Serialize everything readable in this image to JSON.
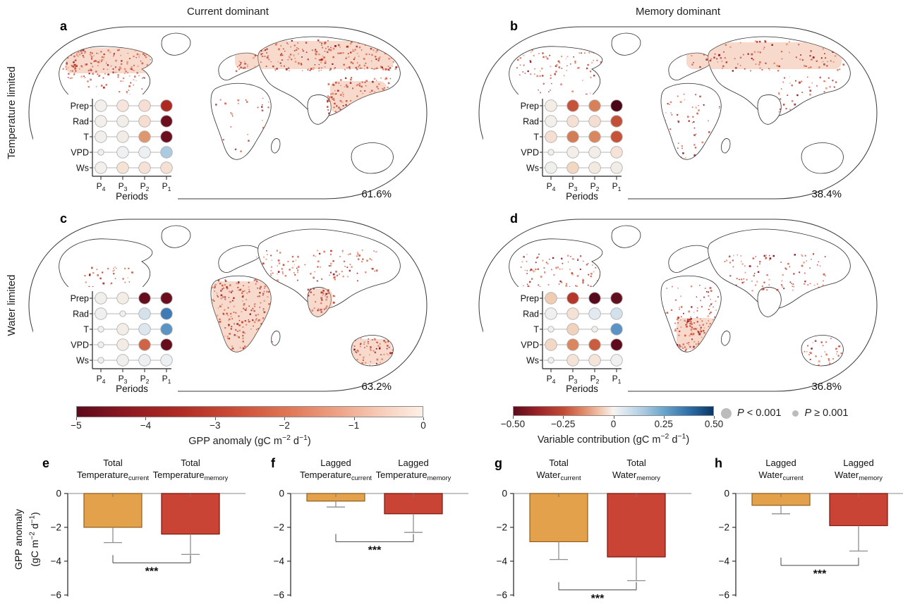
{
  "figure": {
    "column_titles": [
      "Current dominant",
      "Memory dominant"
    ],
    "row_titles": [
      "Temperature limited",
      "Water limited"
    ]
  },
  "inset": {
    "row_labels": [
      "Prep",
      "Rad",
      "T",
      "VPD",
      "Ws"
    ],
    "col_labels": [
      "P_{4}",
      "P_{3}",
      "P_{2}",
      "P_{1}"
    ],
    "xlabel": "Periods"
  },
  "maps": [
    {
      "letter": "a",
      "row": "Temperature limited",
      "column": "Current dominant",
      "percent": "61.6%",
      "matrix": [
        [
          "#f2efec",
          "#f7e4da",
          "#f6ded2",
          "#ad2a23"
        ],
        [
          "#f2efec",
          "#f1eee9",
          "#f6ddd0",
          "#6d0e1f"
        ],
        [
          "#f1efec",
          "#f1ece6",
          "#e0976f",
          "#6d0e1f"
        ],
        [
          "#f0efee",
          "#eef0f1",
          "#ecf0f3",
          "#accbe1"
        ],
        [
          "#f2efec",
          "#f7e2d6",
          "#f7e0d4",
          "#f6dfd3"
        ]
      ],
      "small_dots": [
        [
          3,
          0
        ]
      ]
    },
    {
      "letter": "b",
      "row": "Temperature limited",
      "column": "Memory dominant",
      "percent": "38.4%",
      "matrix": [
        [
          "#f4ede6",
          "#c6523a",
          "#d8805a",
          "#4c0517"
        ],
        [
          "#f2efec",
          "#f6e0d3",
          "#f5ded1",
          "#c24f37"
        ],
        [
          "#f6ded1",
          "#d47c54",
          "#da8760",
          "#c65338"
        ],
        [
          "#f1efec",
          "#f3eee9",
          "#f2ede8",
          "#f6e2d6"
        ],
        [
          "#f1efeb",
          "#f2d7c3",
          "#f3eadf",
          "#f2ece6"
        ]
      ],
      "small_dots": [
        [
          3,
          0
        ]
      ]
    },
    {
      "letter": "c",
      "row": "Water limited",
      "column": "Current dominant",
      "percent": "63.2%",
      "matrix": [
        [
          "#f1efec",
          "#f3ede6",
          "#650c1d",
          "#6d0e1f"
        ],
        [
          "#f0f0ef",
          "#f0efed",
          "#d3e1ea",
          "#3f7cb5"
        ],
        [
          "#f0f0ef",
          "#f2ede7",
          "#dbe6ee",
          "#5b94c4"
        ],
        [
          "#f0efed",
          "#f3ece4",
          "#cf6446",
          "#650c1d"
        ],
        [
          "#efefee",
          "#f1efed",
          "#edf0f2",
          "#edf0f2"
        ]
      ],
      "small_dots": [
        [
          1,
          1
        ],
        [
          2,
          0
        ],
        [
          3,
          0
        ],
        [
          4,
          0
        ]
      ]
    },
    {
      "letter": "d",
      "row": "Water limited",
      "column": "Memory dominant",
      "percent": "36.8%",
      "matrix": [
        [
          "#efccb2",
          "#b63629",
          "#570a1b",
          "#62101d"
        ],
        [
          "#eef0f1",
          "#f6e1d5",
          "#e2e9f0",
          "#d3e1ec"
        ],
        [
          "#f0efed",
          "#f1d3bd",
          "#f1eeea",
          "#5b94c4"
        ],
        [
          "#f3d8c6",
          "#da8760",
          "#ca5c3f",
          "#600b1c"
        ],
        [
          "#efefee",
          "#f6e3d8",
          "#f5e4da",
          "#eff0f0"
        ]
      ],
      "small_dots": [
        [
          2,
          0
        ],
        [
          2,
          2
        ],
        [
          4,
          0
        ]
      ]
    }
  ],
  "colorbars": {
    "gpp": {
      "label": "GPP anomaly (gC m^{−2} d^{−1})",
      "ticks": [
        "−5",
        "−4",
        "−3",
        "−2",
        "−1",
        "0"
      ],
      "range": [
        -5,
        0
      ],
      "colors": [
        "#5e0a1c",
        "#fdf0e7"
      ]
    },
    "contribution": {
      "label": "Variable contribution (gC m^{−2} d^{−1})",
      "ticks": [
        "−0.50",
        "−0.25",
        "0",
        "0.25",
        "0.50"
      ],
      "range": [
        -0.5,
        0.5
      ],
      "colors": [
        "#5e0a1c",
        "#f7f4f1",
        "#0b3766"
      ]
    },
    "p_legend": [
      {
        "label": "*P* < 0.001",
        "size": "large"
      },
      {
        "label": "*P* ≥ 0.001",
        "size": "small"
      }
    ]
  },
  "chart_data": [
    {
      "panel": "e",
      "type": "bar",
      "ylabel_line1": "GPP anomaly",
      "ylabel_line2": "(gC m^{−2} d^{−1})",
      "ylim": [
        -6,
        0
      ],
      "yticks": [
        "0",
        "−2",
        "−4",
        "−6"
      ],
      "ytick_values": [
        0,
        -2,
        -4,
        -6
      ],
      "bars": [
        {
          "label_line1": "Total",
          "label_line2": "Temperature_{current}",
          "value": -2.0,
          "error_tip": -2.9,
          "color": "#E3A14C",
          "border": "#8f6020"
        },
        {
          "label_line1": "Total",
          "label_line2": "Temperature_{memory}",
          "value": -2.4,
          "error_tip": -3.6,
          "color": "#C94434",
          "border": "#79150b"
        }
      ],
      "significance": {
        "label": "***",
        "depth": -4.1
      }
    },
    {
      "panel": "f",
      "type": "bar",
      "ylim": [
        -6,
        0
      ],
      "yticks": [
        "0",
        "−2",
        "−4",
        "−6"
      ],
      "ytick_values": [
        0,
        -2,
        -4,
        -6
      ],
      "bars": [
        {
          "label_line1": "Lagged",
          "label_line2": "Temperature_{current}",
          "value": -0.45,
          "error_tip": -0.8,
          "color": "#E3A14C",
          "border": "#8f6020"
        },
        {
          "label_line1": "Lagged",
          "label_line2": "Temperature_{memory}",
          "value": -1.2,
          "error_tip": -2.3,
          "color": "#C94434",
          "border": "#79150b"
        }
      ],
      "significance": {
        "label": "***",
        "depth": -2.85
      }
    },
    {
      "panel": "g",
      "type": "bar",
      "ylim": [
        -6,
        0
      ],
      "yticks": [
        "0",
        "−2",
        "−4",
        "−6"
      ],
      "ytick_values": [
        0,
        -2,
        -4,
        -6
      ],
      "bars": [
        {
          "label_line1": "Total",
          "label_line2": "Water_{current}",
          "value": -2.85,
          "error_tip": -3.9,
          "color": "#E3A14C",
          "border": "#8f6020"
        },
        {
          "label_line1": "Total",
          "label_line2": "Water_{memory}",
          "value": -3.75,
          "error_tip": -5.15,
          "color": "#C94434",
          "border": "#79150b"
        }
      ],
      "significance": {
        "label": "***",
        "depth": -5.7
      }
    },
    {
      "panel": "h",
      "type": "bar",
      "ylim": [
        -6,
        0
      ],
      "yticks": [
        "0",
        "−2",
        "−4",
        "−6"
      ],
      "ytick_values": [
        0,
        -2,
        -4,
        -6
      ],
      "bars": [
        {
          "label_line1": "Lagged",
          "label_line2": "Water_{current}",
          "value": -0.7,
          "error_tip": -1.2,
          "color": "#E3A14C",
          "border": "#8f6020"
        },
        {
          "label_line1": "Lagged",
          "label_line2": "Water_{memory}",
          "value": -1.9,
          "error_tip": -3.4,
          "color": "#C94434",
          "border": "#79150b"
        }
      ],
      "significance": {
        "label": "***",
        "depth": -4.25
      }
    }
  ],
  "colors": {
    "bar_current": "#E3A14C",
    "bar_memory": "#C94434",
    "p_dot": "#bcbcbc",
    "map_speckle": "#b63324"
  }
}
